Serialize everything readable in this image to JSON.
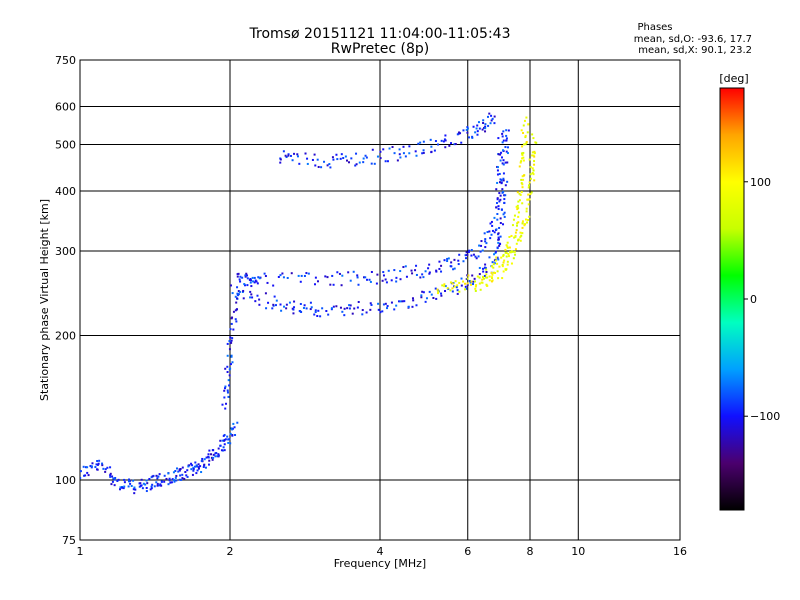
{
  "chart_data": {
    "type": "scatter",
    "title": "Tromsø 20151121 11:04:00-11:05:43",
    "subtitle": "RwPretec (8p)",
    "xlabel": "Frequency [MHz]",
    "ylabel": "Stationary phase Virtual Height [km]",
    "x_scale": "log",
    "y_scale": "log",
    "xlim": [
      1,
      16
    ],
    "ylim": [
      75,
      750
    ],
    "x_ticks": [
      1,
      2,
      4,
      6,
      8,
      10,
      16
    ],
    "y_ticks": [
      75,
      100,
      200,
      300,
      400,
      500,
      600,
      750
    ],
    "grid": true,
    "info": {
      "heading": "Phases",
      "line1": "mean, sd,O: -93.6, 17.7",
      "line2": "mean, sd,X:  90.1, 23.2"
    },
    "colorbar": {
      "label": "[deg]",
      "range": [
        -180,
        180
      ],
      "ticks": [
        -100,
        0,
        100
      ],
      "tick_labels": [
        "−100",
        "0",
        "100"
      ],
      "colors": [
        "#000000",
        "#4b006e",
        "#1010ff",
        "#00a0ff",
        "#00ffc0",
        "#00ff00",
        "#c8ff00",
        "#ffff00",
        "#ffa500",
        "#ff0000"
      ]
    },
    "traces": [
      {
        "name": "",
        "phase": -95,
        "points": [
          [
            1.0,
            103
          ],
          [
            1.05,
            106
          ],
          [
            1.1,
            107
          ],
          [
            1.15,
            103
          ],
          [
            1.2,
            98
          ],
          [
            1.25,
            97
          ],
          [
            1.3,
            97
          ],
          [
            1.35,
            97
          ],
          [
            1.4,
            99
          ],
          [
            1.45,
            100
          ],
          [
            1.5,
            100
          ],
          [
            1.55,
            101
          ],
          [
            1.6,
            103
          ],
          [
            1.65,
            104
          ],
          [
            1.7,
            106
          ],
          [
            1.75,
            108
          ],
          [
            1.8,
            110
          ],
          [
            1.85,
            113
          ],
          [
            1.9,
            115
          ],
          [
            1.95,
            120
          ],
          [
            2.0,
            125
          ],
          [
            2.05,
            130
          ]
        ]
      },
      {
        "name": "",
        "phase": -95,
        "points": [
          [
            1.95,
            140
          ],
          [
            1.97,
            160
          ],
          [
            2.0,
            180
          ],
          [
            2.02,
            200
          ],
          [
            2.05,
            230
          ],
          [
            2.1,
            260
          ],
          [
            2.2,
            262
          ],
          [
            2.3,
            258
          ]
        ]
      },
      {
        "name": "",
        "phase": -95,
        "points": [
          [
            2.0,
            250
          ],
          [
            2.2,
            242
          ],
          [
            2.4,
            235
          ],
          [
            2.6,
            230
          ],
          [
            2.8,
            227
          ],
          [
            3.0,
            226
          ],
          [
            3.3,
            226
          ],
          [
            3.6,
            228
          ],
          [
            4.0,
            230
          ],
          [
            4.4,
            234
          ],
          [
            4.8,
            238
          ],
          [
            5.2,
            243
          ],
          [
            5.6,
            250
          ],
          [
            6.0,
            258
          ],
          [
            6.4,
            268
          ],
          [
            6.7,
            282
          ],
          [
            6.9,
            300
          ],
          [
            7.0,
            330
          ],
          [
            7.05,
            370
          ],
          [
            7.1,
            420
          ],
          [
            7.15,
            480
          ],
          [
            7.2,
            550
          ]
        ]
      },
      {
        "name": "",
        "phase": -95,
        "points": [
          [
            2.1,
            260
          ],
          [
            2.4,
            262
          ],
          [
            2.8,
            263
          ],
          [
            3.2,
            262
          ],
          [
            3.6,
            263
          ],
          [
            4.0,
            265
          ],
          [
            4.4,
            268
          ],
          [
            4.8,
            272
          ],
          [
            5.2,
            276
          ],
          [
            5.6,
            282
          ],
          [
            6.0,
            292
          ],
          [
            6.3,
            303
          ],
          [
            6.6,
            320
          ],
          [
            6.8,
            345
          ],
          [
            6.9,
            380
          ],
          [
            6.95,
            430
          ],
          [
            7.0,
            480
          ],
          [
            7.02,
            540
          ]
        ]
      },
      {
        "name": "",
        "phase": -95,
        "points": [
          [
            2.5,
            470
          ],
          [
            2.7,
            465
          ],
          [
            3.0,
            463
          ],
          [
            3.3,
            463
          ],
          [
            3.6,
            466
          ],
          [
            4.0,
            473
          ],
          [
            4.4,
            480
          ],
          [
            4.8,
            490
          ],
          [
            5.2,
            500
          ],
          [
            5.6,
            510
          ],
          [
            6.0,
            525
          ],
          [
            6.3,
            540
          ],
          [
            6.6,
            560
          ],
          [
            6.8,
            580
          ]
        ]
      },
      {
        "name": "",
        "phase": 90,
        "points": [
          [
            5.2,
            250
          ],
          [
            5.6,
            252
          ],
          [
            6.0,
            258
          ],
          [
            6.4,
            265
          ],
          [
            6.8,
            278
          ],
          [
            7.1,
            295
          ],
          [
            7.3,
            315
          ],
          [
            7.5,
            345
          ],
          [
            7.6,
            380
          ],
          [
            7.7,
            420
          ],
          [
            7.75,
            470
          ],
          [
            7.8,
            520
          ],
          [
            7.85,
            580
          ]
        ]
      },
      {
        "name": "",
        "phase": 90,
        "points": [
          [
            6.2,
            255
          ],
          [
            6.6,
            262
          ],
          [
            7.0,
            272
          ],
          [
            7.3,
            288
          ],
          [
            7.6,
            310
          ],
          [
            7.8,
            340
          ],
          [
            7.95,
            380
          ],
          [
            8.05,
            420
          ],
          [
            8.1,
            470
          ],
          [
            8.15,
            520
          ]
        ]
      }
    ]
  }
}
